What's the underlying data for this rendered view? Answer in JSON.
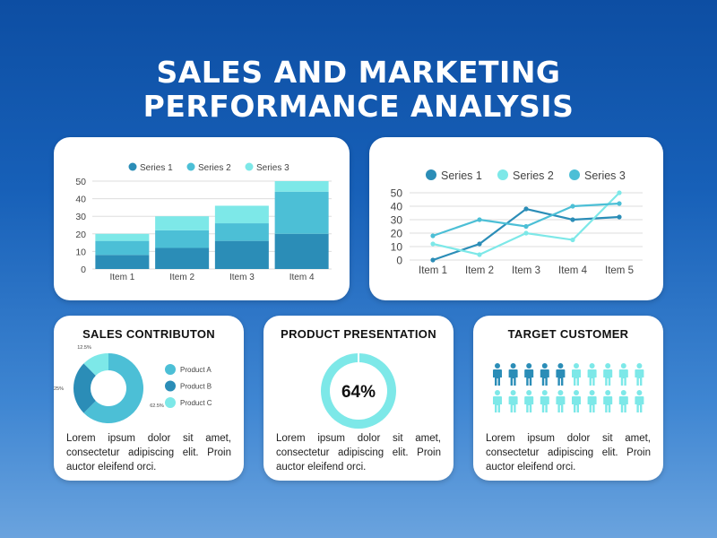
{
  "page": {
    "title_line1": "SALES AND MARKETING",
    "title_line2": "PERFORMANCE ANALYSIS"
  },
  "colors": {
    "dark": "#2b8db7",
    "mid": "#4cbfd6",
    "light": "#7de8e8",
    "grid": "#dddddd",
    "axis_text": "#444444"
  },
  "cards": {
    "sales": {
      "title": "SALES CONTRIBUTON",
      "text": "Lorem ipsum dolor sit amet, consectetur adipiscing elit. Proin auctor eleifend orci."
    },
    "product": {
      "title": "PRODUCT PRESENTATION",
      "text": "Lorem ipsum dolor sit amet, consectetur adipiscing elit. Proin auctor eleifend orci."
    },
    "target": {
      "title": "TARGET CUSTOMER",
      "text": "Lorem ipsum dolor sit amet, consectetur adipiscing elit. Proin auctor eleifend orci."
    }
  },
  "chart_data": [
    {
      "type": "bar",
      "stacked": true,
      "categories": [
        "Item 1",
        "Item 2",
        "Item 3",
        "Item 4"
      ],
      "series": [
        {
          "name": "Series 1",
          "values": [
            8,
            12,
            16,
            20
          ],
          "color": "#2b8db7"
        },
        {
          "name": "Series 2",
          "values": [
            8,
            10,
            10,
            24
          ],
          "color": "#4cbfd6"
        },
        {
          "name": "Series 3",
          "values": [
            4,
            8,
            10,
            6
          ],
          "color": "#7de8e8"
        }
      ],
      "yticks": [
        "0",
        "10",
        "20",
        "30",
        "40",
        "50"
      ],
      "ylim": [
        0,
        50
      ],
      "grid": true,
      "legend": "top-center"
    },
    {
      "type": "line",
      "categories": [
        "Item 1",
        "Item 2",
        "Item 3",
        "Item 4",
        "Item 5"
      ],
      "series": [
        {
          "name": "Series 1",
          "values": [
            0,
            12,
            38,
            30,
            32
          ],
          "color": "#2b8db7"
        },
        {
          "name": "Series 2",
          "values": [
            12,
            4,
            20,
            15,
            50
          ],
          "color": "#7de8e8"
        },
        {
          "name": "Series 3",
          "values": [
            18,
            30,
            25,
            40,
            42
          ],
          "color": "#4cbfd6"
        }
      ],
      "yticks": [
        "0",
        "10",
        "20",
        "30",
        "40",
        "50"
      ],
      "ylim": [
        0,
        50
      ],
      "grid": true,
      "legend": "top-center"
    },
    {
      "type": "pie",
      "donut": true,
      "slices": [
        {
          "name": "Product A",
          "value": 62.5,
          "label": "62.5%",
          "color": "#4cbfd6"
        },
        {
          "name": "Product B",
          "value": 25,
          "label": "25%",
          "color": "#2b8db7"
        },
        {
          "name": "Product C",
          "value": 12.5,
          "label": "12.5%",
          "color": "#7de8e8"
        }
      ],
      "legend": "right"
    },
    {
      "type": "pie",
      "donut": true,
      "value": 64,
      "label": "64%",
      "colors": [
        "#7de8e8",
        "#ffffff"
      ]
    },
    {
      "type": "pictogram",
      "rows": 2,
      "per_row": 10,
      "highlighted_per_row": [
        5,
        0
      ],
      "highlight_color": "#2b8db7",
      "base_color": "#7de8e8"
    }
  ]
}
